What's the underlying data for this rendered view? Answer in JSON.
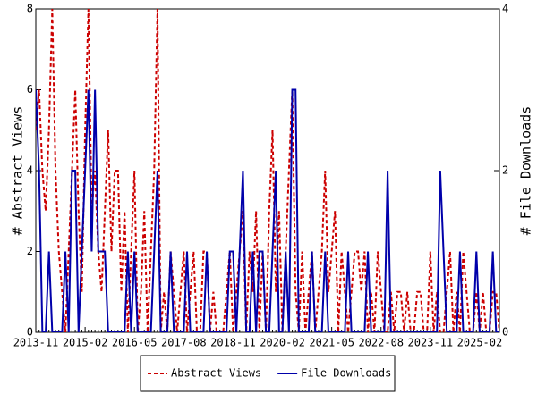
{
  "chart_data": {
    "type": "line",
    "x_label": null,
    "y_label": "# Abstract Views",
    "y2_label": "# File Downloads",
    "categories": [
      "2013-11",
      null,
      null,
      null,
      null,
      null,
      null,
      null,
      null,
      null,
      null,
      null,
      null,
      null,
      null,
      "2015-02",
      null,
      null,
      null,
      null,
      null,
      null,
      null,
      null,
      null,
      null,
      null,
      null,
      null,
      null,
      "2016-05",
      null,
      null,
      null,
      null,
      null,
      null,
      null,
      null,
      null,
      null,
      null,
      null,
      null,
      null,
      "2017-08",
      null,
      null,
      null,
      null,
      null,
      null,
      null,
      null,
      null,
      null,
      null,
      null,
      null,
      null,
      "2018-11",
      null,
      null,
      null,
      null,
      null,
      null,
      null,
      null,
      null,
      null,
      null,
      null,
      null,
      null,
      "2020-02",
      null,
      null,
      null,
      null,
      null,
      null,
      null,
      null,
      null,
      null,
      null,
      null,
      null,
      null,
      "2021-05",
      null,
      null,
      null,
      null,
      null,
      null,
      null,
      null,
      null,
      null,
      null,
      null,
      null,
      null,
      "2022-08",
      null,
      null,
      null,
      null,
      null,
      null,
      null,
      null,
      null,
      null,
      null,
      null,
      null,
      null,
      "2023-11",
      null,
      null,
      null,
      null,
      null,
      null,
      null,
      null,
      null,
      null,
      null,
      null,
      null,
      null,
      "2025-02",
      null,
      null,
      null,
      null,
      null,
      null
    ],
    "series": [
      {
        "name": "Abstract Views",
        "color": "#cc0000",
        "dash": true,
        "axis": "y",
        "values": [
          5,
          6,
          4,
          3,
          5,
          8,
          4,
          2,
          1,
          0,
          2,
          4,
          6,
          3,
          1,
          5,
          8,
          3,
          4,
          2,
          1,
          3,
          5,
          2,
          4,
          4,
          1,
          3,
          0,
          2,
          4,
          0,
          1,
          3,
          0,
          2,
          4,
          8,
          0,
          1,
          0,
          2,
          1,
          0,
          1,
          2,
          0,
          1,
          2,
          0,
          0,
          2,
          2,
          0,
          1,
          0,
          0,
          0,
          1,
          2,
          0,
          1,
          2,
          3,
          0,
          2,
          1,
          3,
          0,
          2,
          0,
          3,
          5,
          1,
          3,
          0,
          2,
          4,
          6,
          1,
          0,
          2,
          0,
          1,
          2,
          0,
          1,
          2,
          4,
          1,
          2,
          3,
          0,
          2,
          1,
          0,
          1,
          2,
          2,
          1,
          2,
          0,
          1,
          0,
          2,
          1,
          0,
          0,
          1,
          0,
          1,
          1,
          0,
          1,
          0,
          0,
          1,
          1,
          0,
          0,
          2,
          0,
          1,
          0,
          0,
          1,
          2,
          0,
          1,
          0,
          2,
          1,
          0,
          0,
          1,
          0,
          1,
          0,
          0,
          1,
          1,
          0
        ]
      },
      {
        "name": "File Downloads",
        "color": "#0000aa",
        "dash": false,
        "axis": "y2",
        "values": [
          3,
          2,
          0,
          0,
          1,
          0,
          0,
          0,
          0,
          1,
          0,
          2,
          2,
          0,
          1,
          2,
          3,
          1,
          3,
          1,
          1,
          1,
          0,
          0,
          0,
          0,
          0,
          0,
          1,
          0,
          1,
          0,
          0,
          0,
          0,
          0,
          1,
          2,
          0,
          0,
          0,
          1,
          0,
          0,
          0,
          0,
          1,
          0,
          0,
          0,
          0,
          0,
          1,
          0,
          0,
          0,
          0,
          0,
          0,
          1,
          1,
          0,
          1,
          2,
          0,
          0,
          1,
          0,
          1,
          1,
          0,
          0,
          1,
          2,
          0,
          0,
          1,
          0,
          3,
          3,
          0,
          0,
          0,
          0,
          1,
          0,
          0,
          0,
          1,
          0,
          0,
          0,
          0,
          0,
          0,
          1,
          0,
          0,
          0,
          0,
          0,
          1,
          0,
          0,
          0,
          0,
          0,
          2,
          0,
          0,
          0,
          0,
          0,
          0,
          0,
          0,
          0,
          0,
          0,
          0,
          0,
          0,
          0,
          2,
          1,
          0,
          0,
          0,
          0,
          1,
          0,
          0,
          0,
          0,
          1,
          0,
          0,
          0,
          0,
          1,
          0,
          0
        ]
      }
    ],
    "ylim": [
      0,
      8
    ],
    "yticks": [
      0,
      2,
      4,
      6,
      8
    ],
    "y2lim": [
      0,
      4
    ],
    "y2ticks": [
      0,
      2,
      4
    ],
    "grid": false,
    "legend": "bottom"
  }
}
